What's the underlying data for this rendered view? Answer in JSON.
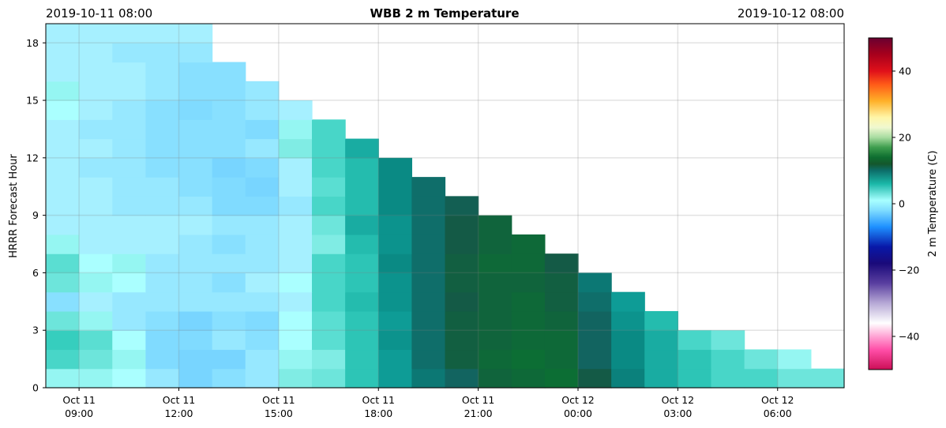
{
  "header": {
    "left": "2019-10-11 08:00",
    "title": "WBB 2 m Temperature",
    "right": "2019-10-12 08:00"
  },
  "chart_data": {
    "type": "heatmap",
    "title": "WBB 2 m Temperature",
    "ylabel": "HRRR Forecast Hour",
    "colorbar_label": "2 m Temperature (C)",
    "colorbar_range": [
      -50,
      50
    ],
    "colorbar_ticks": [
      "−40",
      "−20",
      "0",
      "20",
      "40"
    ],
    "colorbar_tick_values": [
      -40,
      -20,
      0,
      20,
      40
    ],
    "x_start_hour": 8,
    "x_cells": 24,
    "y_range": [
      0,
      19
    ],
    "y_ticks": [
      "0",
      "3",
      "6",
      "9",
      "12",
      "15",
      "18"
    ],
    "y_tick_values": [
      0,
      3,
      6,
      9,
      12,
      15,
      18
    ],
    "x_tick_hours": [
      9,
      12,
      15,
      18,
      21,
      24,
      27,
      30
    ],
    "x_ticks": [
      {
        "date": "Oct 11",
        "time": "09:00"
      },
      {
        "date": "Oct 11",
        "time": "12:00"
      },
      {
        "date": "Oct 11",
        "time": "15:00"
      },
      {
        "date": "Oct 11",
        "time": "18:00"
      },
      {
        "date": "Oct 11",
        "time": "21:00"
      },
      {
        "date": "Oct 12",
        "time": "00:00"
      },
      {
        "date": "Oct 12",
        "time": "03:00"
      },
      {
        "date": "Oct 12",
        "time": "06:00"
      }
    ],
    "grid": true,
    "values": [
      [
        0.5,
        0.5,
        0.0,
        -1.0,
        -2.5,
        -1.5,
        -1.0,
        1.0,
        1.5,
        3.5,
        5.0,
        7.0,
        8.0,
        10.0,
        10.5,
        11.0,
        9.0,
        6.5,
        4.5,
        3.5,
        2.5,
        2.5,
        1.5,
        1.5
      ],
      [
        2.5,
        1.5,
        0.5,
        -2.0,
        -2.5,
        -2.5,
        -1.0,
        0.5,
        1.0,
        3.5,
        5.0,
        7.5,
        9.5,
        10.5,
        11.0,
        10.5,
        8.0,
        6.0,
        4.5,
        3.5,
        2.5,
        1.5,
        0.5
      ],
      [
        3.0,
        2.0,
        0.0,
        -2.0,
        -2.0,
        -1.0,
        -1.5,
        0.0,
        2.0,
        3.5,
        5.5,
        7.5,
        9.5,
        10.0,
        10.5,
        10.5,
        8.0,
        6.0,
        4.5,
        2.5,
        1.5
      ],
      [
        1.5,
        0.5,
        -1.0,
        -1.5,
        -2.5,
        -1.5,
        -2.0,
        0.0,
        2.0,
        3.5,
        5.0,
        7.5,
        9.5,
        10.0,
        10.5,
        10.0,
        8.0,
        5.5,
        4.0
      ],
      [
        -1.5,
        -0.5,
        -1.0,
        -1.0,
        -1.0,
        -1.0,
        -1.0,
        -0.5,
        2.5,
        4.0,
        5.5,
        7.5,
        9.0,
        10.0,
        10.5,
        9.5,
        7.5,
        5.0
      ],
      [
        1.5,
        0.5,
        0.0,
        -1.0,
        -1.0,
        -1.5,
        -0.5,
        0.0,
        2.5,
        3.5,
        5.5,
        7.5,
        9.5,
        10.0,
        10.0,
        9.5,
        7.0
      ],
      [
        2.0,
        0.0,
        0.5,
        -1.0,
        -1.0,
        -1.0,
        -1.0,
        -0.5,
        2.5,
        3.5,
        6.0,
        7.5,
        9.5,
        10.5,
        10.5,
        9.0
      ],
      [
        0.5,
        -0.5,
        -0.5,
        -0.5,
        -1.0,
        -1.5,
        -1.0,
        -0.5,
        1.0,
        4.0,
        5.5,
        7.5,
        9.0,
        10.0,
        10.5
      ],
      [
        -0.5,
        -0.5,
        -0.5,
        -0.5,
        -0.5,
        -1.0,
        -1.0,
        -0.5,
        1.5,
        4.5,
        5.5,
        7.5,
        9.0,
        10.0
      ],
      [
        -0.5,
        -0.5,
        -1.0,
        -1.0,
        -1.0,
        -2.0,
        -2.0,
        -1.0,
        2.5,
        4.0,
        6.0,
        7.5,
        8.5
      ],
      [
        -0.5,
        -0.5,
        -1.0,
        -1.0,
        -1.5,
        -2.0,
        -2.5,
        -0.5,
        2.0,
        4.0,
        6.0,
        7.5
      ],
      [
        -0.5,
        -1.0,
        -1.0,
        -1.5,
        -1.5,
        -2.5,
        -2.0,
        -0.5,
        2.5,
        4.0,
        6.0
      ],
      [
        -0.5,
        -0.5,
        -1.0,
        -1.5,
        -1.5,
        -1.5,
        -1.0,
        1.0,
        2.5,
        4.5
      ],
      [
        -0.5,
        -1.0,
        -1.0,
        -1.5,
        -1.5,
        -1.5,
        -2.0,
        0.5,
        2.5
      ],
      [
        0.0,
        -0.5,
        -1.0,
        -1.5,
        -2.0,
        -1.5,
        -1.0,
        -0.5
      ],
      [
        0.5,
        -0.5,
        -0.5,
        -1.0,
        -1.5,
        -1.5,
        -1.0
      ],
      [
        -0.5,
        -0.5,
        -0.5,
        -1.0,
        -1.5,
        -1.5
      ],
      [
        -0.5,
        -0.5,
        -1.0,
        -1.0,
        -1.0
      ],
      [
        -0.5,
        -0.5,
        -0.5,
        -0.5,
        -0.5
      ]
    ]
  }
}
